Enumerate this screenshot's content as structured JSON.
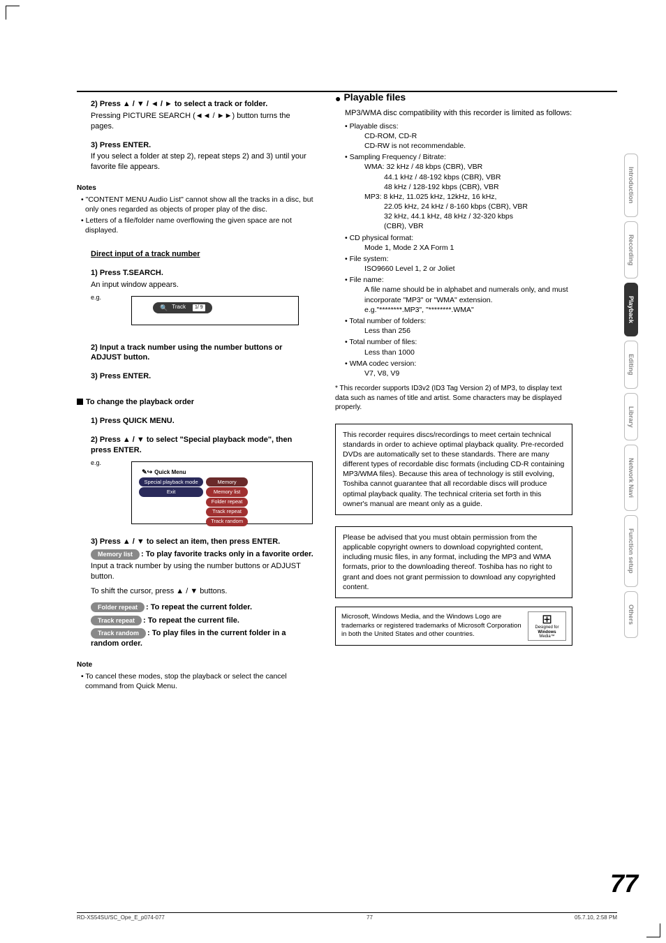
{
  "page_number": "77",
  "footer": {
    "left": "RD-XS54SU/SC_Ope_E_p074-077",
    "mid": "77",
    "right": "05.7.10, 2:58 PM"
  },
  "side_tabs": [
    "Introduction",
    "Recording",
    "Playback",
    "Editing",
    "Library",
    "Network Navi",
    "Function setup",
    "Others"
  ],
  "side_tabs_active_index": 2,
  "left": {
    "step2_head": "2) Press ▲ / ▼ / ◄ / ► to select a track or folder.",
    "step2_body": "Pressing PICTURE SEARCH (◄◄ / ►►) button turns the pages.",
    "step3_head": "3) Press ENTER.",
    "step3_body": "If you select a folder at step 2), repeat steps 2) and 3) until your favorite file appears.",
    "notes_head": "Notes",
    "notes": [
      "• \"CONTENT MENU Audio List\" cannot show all the tracks in a disc, but only ones regarded as objects of proper play of the disc.",
      "• Letters of a file/folder name overflowing the given space are not displayed."
    ],
    "direct_input_title": "Direct input of a track number",
    "di_step1_head": "1) Press T.SEARCH.",
    "di_step1_body": "An input window appears.",
    "eg_label": "e.g.",
    "input_pill_track": "Track",
    "input_pill_box": "1/ 9",
    "di_step2": "2) Input a track number using the number buttons or ADJUST button.",
    "di_step3": "3) Press ENTER.",
    "change_order_head": "To change the playback order",
    "co_step1": "1) Press QUICK MENU.",
    "co_step2": "2) Press ▲ / ▼ to select \"Special playback mode\", then press ENTER.",
    "qm_title": "Quick Menu",
    "qm_left": [
      "Special playback mode",
      "Exit"
    ],
    "qm_right": [
      "Memory",
      "Memory list",
      "Folder repeat",
      "Track repeat",
      "Track random"
    ],
    "co_step3": "3) Press ▲ / ▼ to select an item, then press ENTER.",
    "pill_memory_list": "Memory list",
    "memory_list_desc": ": To play favorite tracks only in a favorite order.",
    "memory_list_body1": "Input a track number by using the number buttons or ADJUST button.",
    "memory_list_body2": "To shift the cursor, press ▲ / ▼ buttons.",
    "pill_folder_repeat": "Folder repeat",
    "folder_repeat_desc": ": To repeat the current folder.",
    "pill_track_repeat": "Track repeat",
    "track_repeat_desc": ": To repeat the current file.",
    "pill_track_random": "Track random",
    "track_random_desc": ": To play files in the current folder in a random order.",
    "note_head": "Note",
    "note_body": "• To cancel these modes, stop the playback or select the cancel command from Quick Menu."
  },
  "right": {
    "title": "Playable files",
    "intro": "MP3/WMA disc compatibility with this recorder is limited as follows:",
    "specs": [
      {
        "k": "• Playable discs:",
        "v": [
          "CD-ROM, CD-R",
          "CD-RW is not recommendable."
        ]
      },
      {
        "k": "• Sampling Frequency / Bitrate:",
        "v": [
          "WMA:  32 kHz / 48 kbps (CBR), VBR",
          "44.1 kHz / 48-192 kbps (CBR), VBR",
          "48 kHz / 128-192 kbps (CBR), VBR",
          "MP3:   8 kHz, 11.025 kHz, 12kHz, 16 kHz,",
          "22.05 kHz, 24 kHz / 8-160 kbps (CBR), VBR",
          "32 kHz, 44.1 kHz, 48 kHz / 32-320 kbps",
          "(CBR), VBR"
        ]
      },
      {
        "k": "• CD physical format:",
        "v": [
          "Mode 1, Mode 2 XA Form 1"
        ]
      },
      {
        "k": "• File system:",
        "v": [
          "ISO9660 Level 1, 2 or Joliet"
        ]
      },
      {
        "k": "• File name:",
        "v": [
          "A file name should be in alphabet and numerals only, and must incorporate \"MP3\" or \"WMA\" extension.",
          "e.g.\"********.MP3\", \"********.WMA\""
        ]
      },
      {
        "k": "• Total number of folders:",
        "v": [
          "Less than 256"
        ]
      },
      {
        "k": "• Total number of files:",
        "v": [
          "Less than 1000"
        ]
      },
      {
        "k": "• WMA codec version:",
        "v": [
          "V7, V8, V9"
        ]
      }
    ],
    "asterisk": "* This recorder supports ID3v2 (ID3 Tag Version 2) of MP3, to display text data such as names of title and artist. Some characters may be displayed properly.",
    "box1": "This recorder requires discs/recordings to meet certain technical standards in order to achieve optimal playback quality.  Pre-recorded DVDs are automatically set to these standards. There are many different types of recordable disc formats (including CD-R containing MP3/WMA files).  Because this area of technology is still evolving, Toshiba cannot guarantee that all recordable discs will produce optimal playback quality. The technical criteria set forth in this owner's manual are meant only as a guide.",
    "box2": "Please be advised that you must obtain permission from the applicable copyright owners to download copyrighted content, including music files, in any format, including the MP3 and WMA formats, prior to the downloading thereof. Toshiba has no right to grant and does not grant permission to download any copyrighted content.",
    "ms_text": "Microsoft, Windows Media, and the Windows Logo are trademarks or registered trademarks of Microsoft Corporation in both the United States and other countries.",
    "winlogo_lines": [
      "Designed for",
      "Windows",
      "Media™"
    ]
  }
}
